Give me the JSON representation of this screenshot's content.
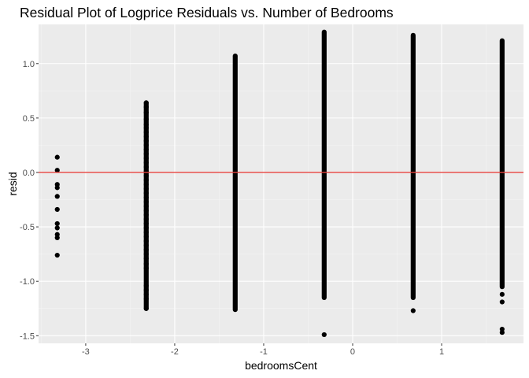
{
  "chart_data": {
    "type": "scatter",
    "title": "Residual Plot of Logprice Residuals vs. Number of Bedrooms",
    "xlabel": "bedroomsCent",
    "ylabel": "resid",
    "xlim": [
      -3.53,
      1.92
    ],
    "ylim": [
      -1.57,
      1.36
    ],
    "x_ticks": [
      -3,
      -2,
      -1,
      0,
      1
    ],
    "x_tick_labels": [
      "-3",
      "-2",
      "-1",
      "0",
      "1"
    ],
    "y_ticks": [
      -1.5,
      -1.0,
      -0.5,
      0.0,
      0.5,
      1.0
    ],
    "y_tick_labels": [
      "-1.5",
      "-1.0",
      "-0.5",
      "0.0",
      "0.5",
      "1.0"
    ],
    "grid": true,
    "legend": "none",
    "colors": {
      "panel_background": "#EBEBEB",
      "grid_major": "#FFFFFF",
      "grid_minor": "#F4F4F4",
      "points": "#000000",
      "reference_line": "#E8423D"
    },
    "reference_line": {
      "orientation": "horizontal",
      "y": 0.0
    },
    "series": [
      {
        "x": -3.32,
        "points": [
          0.14,
          0.02,
          -0.11,
          -0.14,
          -0.22,
          -0.34,
          -0.47,
          -0.51,
          -0.57,
          -0.6,
          -0.76
        ]
      },
      {
        "x": -2.32,
        "range": [
          -1.25,
          0.64
        ],
        "points": [
          0.64,
          0.6,
          0.55,
          0.49,
          0.44,
          0.41,
          0.37,
          0.33,
          0.29,
          0.25,
          0.21,
          0.17,
          0.13,
          0.09,
          0.05,
          0.01,
          -0.03,
          -0.07,
          -0.11,
          -0.15,
          -0.19,
          -0.23,
          -0.27,
          -0.31,
          -0.35,
          -0.39,
          -0.43,
          -0.47,
          -0.51,
          -0.55,
          -0.59,
          -0.63,
          -0.67,
          -0.71,
          -0.75,
          -0.79,
          -0.84,
          -0.88,
          -1.04,
          -1.08,
          -1.12,
          -1.16,
          -1.25
        ]
      },
      {
        "x": -1.32,
        "range": [
          -1.26,
          1.07
        ],
        "points": []
      },
      {
        "x": -0.32,
        "range": [
          -1.15,
          1.29
        ],
        "points": [
          -1.49
        ]
      },
      {
        "x": 0.68,
        "range": [
          -1.15,
          1.26
        ],
        "points": [
          -1.27
        ]
      },
      {
        "x": 1.68,
        "range": [
          -1.05,
          1.21
        ],
        "points": [
          -1.12,
          -1.19,
          -1.44,
          -1.47
        ]
      }
    ]
  }
}
